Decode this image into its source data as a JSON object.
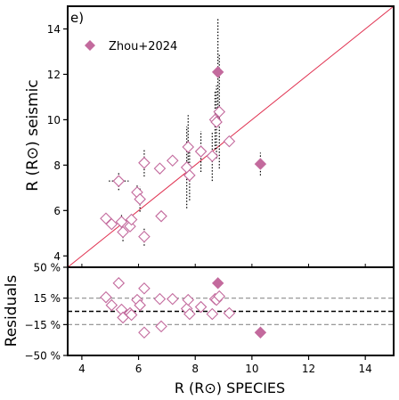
{
  "panel_label": "e)",
  "colors": {
    "marker": "#c36a9d",
    "one_to_one_line": "#e0304f",
    "reference_band": "#8c8c8c",
    "zero_line": "#000000",
    "axes": "#000000"
  },
  "chart_data": [
    {
      "type": "scatter",
      "panel": "main",
      "xlabel": "",
      "ylabel": "R (R⊙) seismic",
      "xlim": [
        3.5,
        15
      ],
      "ylim": [
        3.5,
        15.0
      ],
      "yticks": [
        4,
        6,
        8,
        10,
        12,
        14
      ],
      "reference_line": "y = x",
      "legend": {
        "label": "Zhou+2024",
        "position": "top-left"
      },
      "series": [
        {
          "marker": "open-diamond",
          "points": [
            {
              "x": 4.85,
              "y": 5.65
            },
            {
              "x": 5.05,
              "y": 5.4
            },
            {
              "x": 5.3,
              "y": 7.3,
              "xerr": 0.35,
              "yerr": 0.4
            },
            {
              "x": 5.4,
              "y": 5.5,
              "yerr": 0.3
            },
            {
              "x": 5.45,
              "y": 5.05,
              "yerr": 0.4
            },
            {
              "x": 5.7,
              "y": 5.3
            },
            {
              "x": 5.75,
              "y": 5.6
            },
            {
              "x": 5.95,
              "y": 6.8,
              "yerr": 0.3
            },
            {
              "x": 6.05,
              "y": 6.5,
              "yerr": 0.55
            },
            {
              "x": 6.2,
              "y": 8.1,
              "yerr": 0.6
            },
            {
              "x": 6.2,
              "y": 4.85,
              "yerr": 0.4
            },
            {
              "x": 6.75,
              "y": 7.85
            },
            {
              "x": 6.8,
              "y": 5.75
            },
            {
              "x": 7.2,
              "y": 8.2
            },
            {
              "x": 7.7,
              "y": 7.9,
              "yerr": 1.8
            },
            {
              "x": 7.75,
              "y": 8.8,
              "yerr": 1.4
            },
            {
              "x": 7.8,
              "y": 7.55,
              "yerr": 1.1
            },
            {
              "x": 8.2,
              "y": 8.6,
              "yerr": 0.9
            },
            {
              "x": 8.6,
              "y": 8.4,
              "yerr": 1.1
            },
            {
              "x": 8.7,
              "y": 10.0,
              "yerr": 1.3
            },
            {
              "x": 8.75,
              "y": 9.9,
              "yerr": 1.6
            },
            {
              "x": 8.85,
              "y": 10.35,
              "yerr": 2.5
            },
            {
              "x": 9.2,
              "y": 9.05
            }
          ]
        },
        {
          "name": "Zhou+2024",
          "marker": "filled-diamond",
          "points": [
            {
              "x": 8.8,
              "y": 12.1,
              "yerr": 2.4
            },
            {
              "x": 10.3,
              "y": 8.05,
              "yerr": 0.5
            }
          ]
        }
      ]
    },
    {
      "type": "scatter",
      "panel": "residuals",
      "xlabel": "R (R⊙) SPECIES",
      "ylabel": "Residuals",
      "xlim": [
        3.5,
        15
      ],
      "ylim": [
        -50,
        50
      ],
      "xticks": [
        4,
        6,
        8,
        10,
        12,
        14
      ],
      "ytick_labels": [
        "50 %",
        "15 %",
        "−15 %",
        "−50 %"
      ],
      "yticks": [
        50,
        15,
        -15,
        -50
      ],
      "reference_lines": [
        15,
        0,
        -15
      ],
      "series": [
        {
          "marker": "open-diamond",
          "points": [
            {
              "x": 4.85,
              "y": 16
            },
            {
              "x": 5.05,
              "y": 7
            },
            {
              "x": 5.3,
              "y": 32
            },
            {
              "x": 5.4,
              "y": 2
            },
            {
              "x": 5.45,
              "y": -7
            },
            {
              "x": 5.7,
              "y": -2
            },
            {
              "x": 5.75,
              "y": -4
            },
            {
              "x": 5.95,
              "y": 13
            },
            {
              "x": 6.05,
              "y": 7
            },
            {
              "x": 6.2,
              "y": 26
            },
            {
              "x": 6.2,
              "y": -24
            },
            {
              "x": 6.75,
              "y": 14
            },
            {
              "x": 6.8,
              "y": -17
            },
            {
              "x": 7.2,
              "y": 14
            },
            {
              "x": 7.7,
              "y": 3
            },
            {
              "x": 7.75,
              "y": 13
            },
            {
              "x": 7.8,
              "y": -3
            },
            {
              "x": 8.2,
              "y": 5
            },
            {
              "x": 8.6,
              "y": -3
            },
            {
              "x": 8.7,
              "y": 14
            },
            {
              "x": 8.75,
              "y": 13
            },
            {
              "x": 8.85,
              "y": 17
            },
            {
              "x": 9.2,
              "y": -2
            }
          ]
        },
        {
          "name": "Zhou+2024",
          "marker": "filled-diamond",
          "points": [
            {
              "x": 8.8,
              "y": 32
            },
            {
              "x": 10.3,
              "y": -24
            }
          ]
        }
      ]
    }
  ]
}
